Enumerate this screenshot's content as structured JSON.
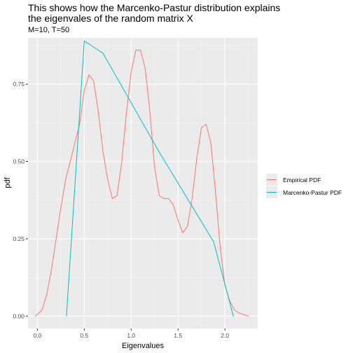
{
  "chart_data": {
    "type": "line",
    "title_lines": [
      "This shows how the Marcenko-Pastur distribution explains",
      "the eigenvales of the random matrix X"
    ],
    "subtitle": "M=10, T=50",
    "xlabel": "Eigenvalues",
    "ylabel": "pdf",
    "xlim": [
      -0.1,
      2.35
    ],
    "ylim": [
      -0.04,
      0.9
    ],
    "x_ticks": [
      0.0,
      0.5,
      1.0,
      1.5,
      2.0
    ],
    "x_tick_labels": [
      "0.0",
      "0.5",
      "1.0",
      "1.5",
      "2.0"
    ],
    "y_ticks": [
      0.0,
      0.25,
      0.5,
      0.75
    ],
    "y_tick_labels": [
      "0.00",
      "0.25",
      "0.50",
      "0.75"
    ],
    "grid": true,
    "legend_position": "right",
    "series": [
      {
        "name": "Empirical PDF",
        "color": "#F8766D",
        "x": [
          -0.02,
          0.05,
          0.1,
          0.15,
          0.2,
          0.25,
          0.3,
          0.35,
          0.4,
          0.45,
          0.5,
          0.55,
          0.6,
          0.65,
          0.7,
          0.75,
          0.8,
          0.85,
          0.9,
          0.95,
          1.0,
          1.05,
          1.1,
          1.15,
          1.2,
          1.25,
          1.3,
          1.35,
          1.4,
          1.45,
          1.5,
          1.55,
          1.6,
          1.65,
          1.7,
          1.75,
          1.8,
          1.85,
          1.9,
          1.95,
          2.0,
          2.05,
          2.1,
          2.15,
          2.2,
          2.25
        ],
        "y": [
          0.0,
          0.02,
          0.07,
          0.15,
          0.25,
          0.35,
          0.44,
          0.5,
          0.56,
          0.62,
          0.73,
          0.78,
          0.76,
          0.66,
          0.53,
          0.44,
          0.38,
          0.39,
          0.5,
          0.66,
          0.79,
          0.86,
          0.86,
          0.8,
          0.66,
          0.48,
          0.39,
          0.38,
          0.38,
          0.36,
          0.31,
          0.27,
          0.29,
          0.38,
          0.51,
          0.61,
          0.62,
          0.56,
          0.4,
          0.22,
          0.1,
          0.05,
          0.02,
          0.01,
          0.005,
          0.0
        ]
      },
      {
        "name": "Marcenko-Pastur PDF",
        "color": "#00BFC4",
        "x": [
          0.31,
          0.5,
          0.7,
          1.0,
          1.3,
          1.6,
          1.88,
          2.09
        ],
        "y": [
          0.0,
          0.89,
          0.85,
          0.69,
          0.53,
          0.38,
          0.24,
          0.0
        ]
      }
    ]
  }
}
